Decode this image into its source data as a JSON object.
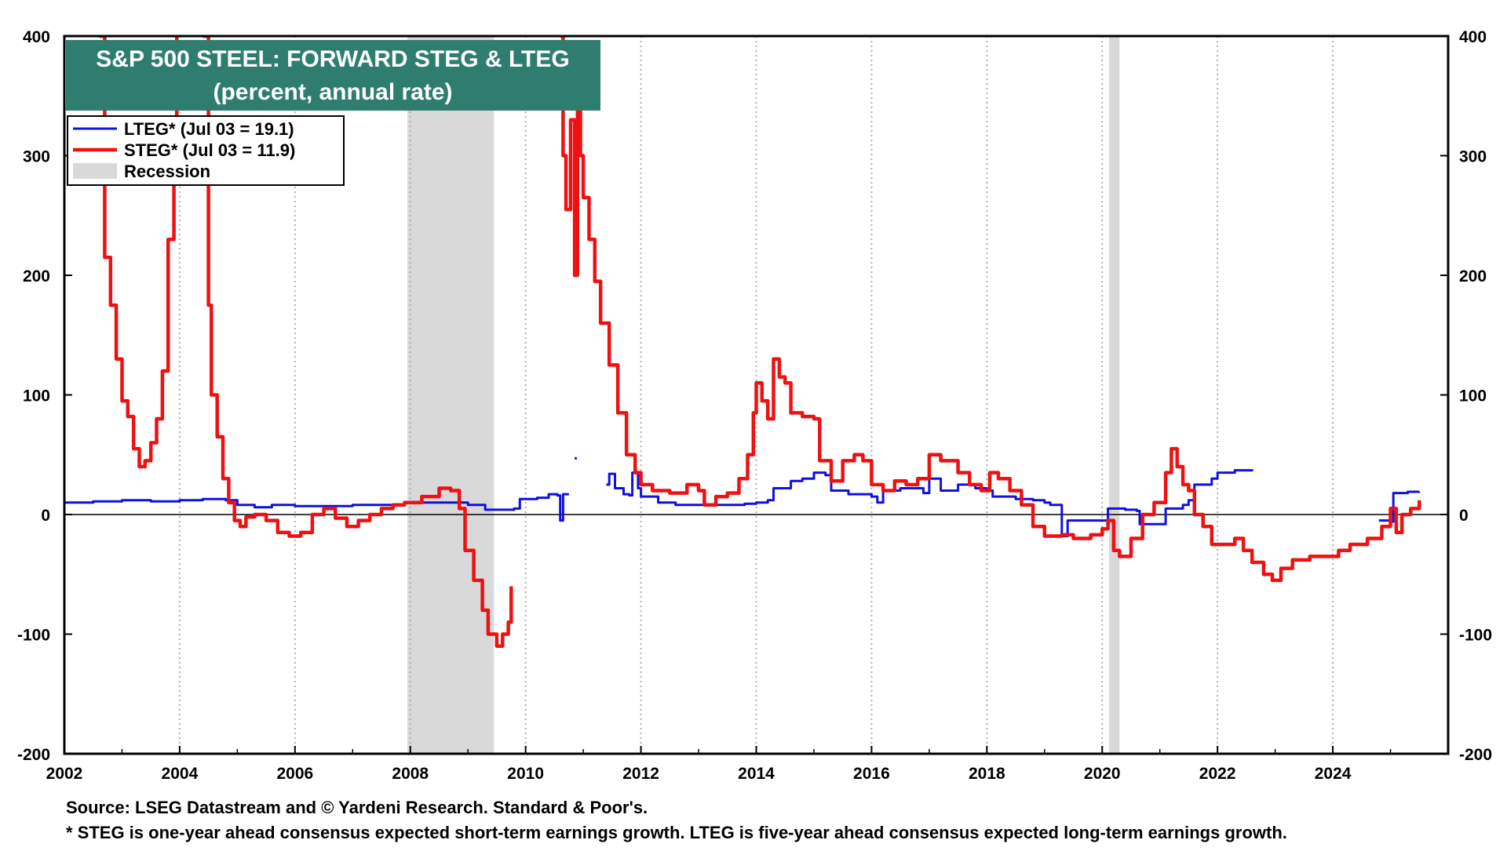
{
  "chart_data": {
    "type": "line",
    "title": "S&P 500 STEEL: FORWARD STEG & LTEG",
    "subtitle": "(percent, annual rate)",
    "ylim": [
      -200,
      400
    ],
    "xlim": [
      2002,
      2026
    ],
    "y_ticks": [
      400,
      300,
      200,
      100,
      0,
      -100,
      -200
    ],
    "y_tick_labels": [
      "400",
      "300",
      "200",
      "100",
      "0",
      "-100",
      "-200"
    ],
    "x_ticks": [
      2002,
      2004,
      2006,
      2008,
      2010,
      2012,
      2014,
      2016,
      2018,
      2020,
      2022,
      2024
    ],
    "x_tick_labels": [
      "2002",
      "2004",
      "2006",
      "2008",
      "2010",
      "2012",
      "2014",
      "2016",
      "2018",
      "2020",
      "2022",
      "2024"
    ],
    "grid": true,
    "legend_position": "top-left",
    "legend": [
      {
        "label": "LTEG* (Jul 03 = 19.1)",
        "color": "#1010e0",
        "kind": "line"
      },
      {
        "label": "STEG* (Jul 03 = 11.9)",
        "color": "#ee1111",
        "kind": "line"
      },
      {
        "label": "Recession",
        "color": "#d9d9d9",
        "kind": "area"
      }
    ],
    "recessions": [
      [
        2007.95,
        2009.45
      ],
      [
        2020.12,
        2020.3
      ]
    ],
    "series": [
      {
        "name": "LTEG",
        "color": "#1010e0",
        "segments": [
          [
            [
              2002.0,
              10
            ],
            [
              2002.5,
              11
            ],
            [
              2003.0,
              12
            ],
            [
              2003.5,
              11
            ],
            [
              2004.0,
              12
            ],
            [
              2004.4,
              13
            ],
            [
              2004.8,
              12
            ],
            [
              2005.0,
              8
            ],
            [
              2005.3,
              6
            ],
            [
              2005.6,
              8
            ],
            [
              2006.0,
              7
            ],
            [
              2006.5,
              7
            ],
            [
              2007.0,
              8
            ],
            [
              2007.5,
              8
            ],
            [
              2007.9,
              10
            ],
            [
              2008.2,
              10
            ],
            [
              2008.7,
              10
            ],
            [
              2009.0,
              8
            ],
            [
              2009.3,
              4
            ],
            [
              2009.8,
              5
            ],
            [
              2009.9,
              13
            ],
            [
              2010.2,
              14
            ],
            [
              2010.4,
              17
            ],
            [
              2010.55,
              16
            ],
            [
              2010.6,
              -5
            ],
            [
              2010.65,
              17
            ],
            [
              2010.75,
              17
            ]
          ],
          [
            [
              2010.85,
              47
            ],
            [
              2010.87,
              46
            ]
          ],
          [
            [
              2011.4,
              25
            ],
            [
              2011.45,
              34
            ],
            [
              2011.55,
              22
            ],
            [
              2011.7,
              17
            ],
            [
              2011.8,
              16
            ],
            [
              2011.85,
              35
            ],
            [
              2011.95,
              22
            ],
            [
              2012.0,
              15
            ],
            [
              2012.3,
              10
            ],
            [
              2012.6,
              8
            ],
            [
              2013.0,
              8
            ],
            [
              2013.5,
              8
            ],
            [
              2013.8,
              9
            ],
            [
              2014.0,
              10
            ],
            [
              2014.2,
              12
            ],
            [
              2014.3,
              22
            ],
            [
              2014.6,
              28
            ],
            [
              2014.8,
              30
            ],
            [
              2015.0,
              35
            ],
            [
              2015.2,
              33
            ],
            [
              2015.3,
              20
            ],
            [
              2015.6,
              17
            ],
            [
              2016.0,
              15
            ],
            [
              2016.1,
              10
            ],
            [
              2016.2,
              20
            ],
            [
              2016.5,
              22
            ],
            [
              2016.9,
              18
            ],
            [
              2017.0,
              30
            ],
            [
              2017.2,
              20
            ],
            [
              2017.5,
              25
            ],
            [
              2017.8,
              22
            ],
            [
              2018.0,
              20
            ],
            [
              2018.1,
              15
            ],
            [
              2018.5,
              13
            ],
            [
              2018.8,
              12
            ],
            [
              2019.0,
              10
            ],
            [
              2019.1,
              8
            ],
            [
              2019.3,
              -18
            ],
            [
              2019.4,
              -5
            ],
            [
              2019.7,
              -5
            ],
            [
              2020.0,
              -5
            ],
            [
              2020.1,
              5
            ],
            [
              2020.4,
              4
            ],
            [
              2020.6,
              3
            ],
            [
              2020.65,
              -8
            ],
            [
              2020.8,
              -8
            ],
            [
              2021.0,
              -8
            ],
            [
              2021.1,
              5
            ],
            [
              2021.4,
              8
            ],
            [
              2021.5,
              12
            ],
            [
              2021.6,
              25
            ],
            [
              2021.9,
              30
            ],
            [
              2022.0,
              35
            ],
            [
              2022.3,
              37
            ],
            [
              2022.6,
              38
            ]
          ],
          [
            [
              2024.8,
              -5
            ],
            [
              2025.0,
              -6
            ],
            [
              2025.05,
              18
            ],
            [
              2025.3,
              19
            ],
            [
              2025.5,
              19.1
            ]
          ]
        ]
      },
      {
        "name": "STEG",
        "color": "#ee1111",
        "segments": [
          [
            [
              2002.6,
              400
            ],
            [
              2002.7,
              215
            ],
            [
              2002.8,
              175
            ],
            [
              2002.9,
              130
            ],
            [
              2003.0,
              95
            ],
            [
              2003.1,
              82
            ],
            [
              2003.2,
              55
            ],
            [
              2003.3,
              40
            ],
            [
              2003.4,
              45
            ],
            [
              2003.5,
              60
            ],
            [
              2003.6,
              80
            ],
            [
              2003.7,
              120
            ],
            [
              2003.8,
              230
            ],
            [
              2003.9,
              300
            ],
            [
              2003.95,
              400
            ]
          ],
          [
            [
              2004.4,
              400
            ],
            [
              2004.5,
              175
            ],
            [
              2004.55,
              100
            ],
            [
              2004.65,
              65
            ],
            [
              2004.75,
              30
            ],
            [
              2004.85,
              10
            ],
            [
              2004.95,
              -5
            ],
            [
              2005.05,
              -10
            ],
            [
              2005.15,
              -2
            ],
            [
              2005.3,
              0
            ],
            [
              2005.5,
              -5
            ],
            [
              2005.7,
              -15
            ],
            [
              2005.9,
              -18
            ],
            [
              2006.1,
              -15
            ],
            [
              2006.3,
              0
            ],
            [
              2006.5,
              5
            ],
            [
              2006.7,
              -3
            ],
            [
              2006.9,
              -10
            ],
            [
              2007.1,
              -5
            ],
            [
              2007.3,
              0
            ],
            [
              2007.5,
              5
            ],
            [
              2007.7,
              8
            ],
            [
              2007.9,
              10
            ],
            [
              2008.2,
              15
            ],
            [
              2008.5,
              22
            ],
            [
              2008.7,
              20
            ],
            [
              2008.85,
              5
            ],
            [
              2008.95,
              -30
            ],
            [
              2009.1,
              -55
            ],
            [
              2009.25,
              -80
            ],
            [
              2009.35,
              -100
            ],
            [
              2009.5,
              -110
            ],
            [
              2009.6,
              -100
            ],
            [
              2009.7,
              -90
            ],
            [
              2009.75,
              -60
            ]
          ],
          [
            [
              2010.6,
              400
            ],
            [
              2010.65,
              300
            ],
            [
              2010.7,
              255
            ],
            [
              2010.78,
              330
            ],
            [
              2010.85,
              200
            ],
            [
              2010.9,
              370
            ],
            [
              2010.95,
              300
            ],
            [
              2011.0,
              265
            ],
            [
              2011.1,
              230
            ],
            [
              2011.2,
              195
            ],
            [
              2011.3,
              160
            ],
            [
              2011.45,
              125
            ],
            [
              2011.6,
              85
            ],
            [
              2011.75,
              50
            ],
            [
              2011.9,
              35
            ],
            [
              2012.0,
              25
            ],
            [
              2012.2,
              20
            ],
            [
              2012.5,
              18
            ],
            [
              2012.8,
              25
            ],
            [
              2013.0,
              20
            ],
            [
              2013.1,
              8
            ],
            [
              2013.3,
              15
            ],
            [
              2013.5,
              18
            ],
            [
              2013.7,
              30
            ],
            [
              2013.85,
              50
            ],
            [
              2013.95,
              85
            ],
            [
              2014.0,
              110
            ],
            [
              2014.1,
              95
            ],
            [
              2014.2,
              80
            ],
            [
              2014.3,
              130
            ],
            [
              2014.4,
              115
            ],
            [
              2014.5,
              110
            ],
            [
              2014.6,
              85
            ],
            [
              2014.8,
              82
            ],
            [
              2015.0,
              80
            ],
            [
              2015.1,
              45
            ],
            [
              2015.3,
              28
            ],
            [
              2015.5,
              45
            ],
            [
              2015.7,
              50
            ],
            [
              2015.85,
              45
            ],
            [
              2016.0,
              25
            ],
            [
              2016.2,
              20
            ],
            [
              2016.4,
              28
            ],
            [
              2016.6,
              25
            ],
            [
              2016.8,
              30
            ],
            [
              2017.0,
              50
            ],
            [
              2017.2,
              45
            ],
            [
              2017.5,
              35
            ],
            [
              2017.7,
              25
            ],
            [
              2017.9,
              20
            ],
            [
              2018.05,
              35
            ],
            [
              2018.2,
              30
            ],
            [
              2018.4,
              20
            ],
            [
              2018.6,
              8
            ],
            [
              2018.8,
              -10
            ],
            [
              2019.0,
              -18
            ],
            [
              2019.3,
              -17
            ],
            [
              2019.5,
              -20
            ],
            [
              2019.8,
              -17
            ],
            [
              2020.0,
              -12
            ],
            [
              2020.1,
              -5
            ],
            [
              2020.2,
              -30
            ],
            [
              2020.3,
              -35
            ],
            [
              2020.5,
              -20
            ],
            [
              2020.7,
              0
            ],
            [
              2020.9,
              10
            ],
            [
              2021.1,
              35
            ],
            [
              2021.2,
              55
            ],
            [
              2021.3,
              40
            ],
            [
              2021.4,
              25
            ],
            [
              2021.5,
              20
            ],
            [
              2021.6,
              0
            ],
            [
              2021.75,
              -10
            ],
            [
              2021.9,
              -25
            ],
            [
              2022.1,
              -25
            ],
            [
              2022.3,
              -20
            ],
            [
              2022.45,
              -30
            ],
            [
              2022.6,
              -40
            ],
            [
              2022.8,
              -50
            ],
            [
              2022.95,
              -55
            ],
            [
              2023.1,
              -45
            ],
            [
              2023.3,
              -38
            ],
            [
              2023.6,
              -35
            ],
            [
              2023.9,
              -35
            ],
            [
              2024.1,
              -30
            ],
            [
              2024.3,
              -25
            ],
            [
              2024.6,
              -20
            ],
            [
              2024.85,
              -10
            ],
            [
              2025.0,
              5
            ],
            [
              2025.1,
              -15
            ],
            [
              2025.2,
              0
            ],
            [
              2025.35,
              5
            ],
            [
              2025.5,
              11.9
            ]
          ]
        ]
      }
    ]
  },
  "footer": {
    "source": "Source: LSEG Datastream and © Yardeni Research. Standard & Poor's.",
    "note": "* STEG is one-year ahead consensus expected short-term earnings growth. LTEG is five-year ahead consensus expected long-term earnings growth."
  }
}
